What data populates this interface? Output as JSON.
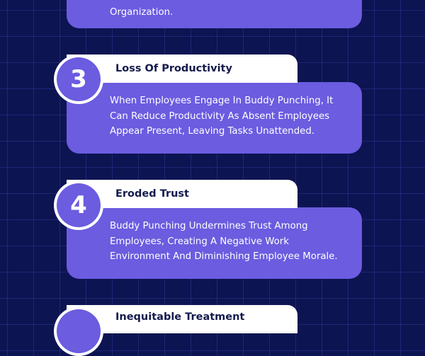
{
  "items": [
    {
      "number": "",
      "title": "",
      "lines": [
        "Organization."
      ]
    },
    {
      "number": "3",
      "title": "Loss Of Productivity",
      "lines": [
        "When Employees Engage In Buddy Punching, It",
        "Can Reduce Productivity As Absent Employees",
        "Appear Present, Leaving Tasks Unattended."
      ]
    },
    {
      "number": "4",
      "title": "Eroded Trust",
      "lines": [
        "Buddy Punching Undermines Trust Among",
        "Employees, Creating A Negative Work",
        "Environment And Diminishing Employee Morale."
      ]
    },
    {
      "number": "",
      "title": "Inequitable Treatment",
      "lines": []
    }
  ],
  "colors": {
    "background": "#0d1452",
    "card": "#6b5ce0",
    "title_card": "#ffffff",
    "title_text": "#141a4c"
  }
}
